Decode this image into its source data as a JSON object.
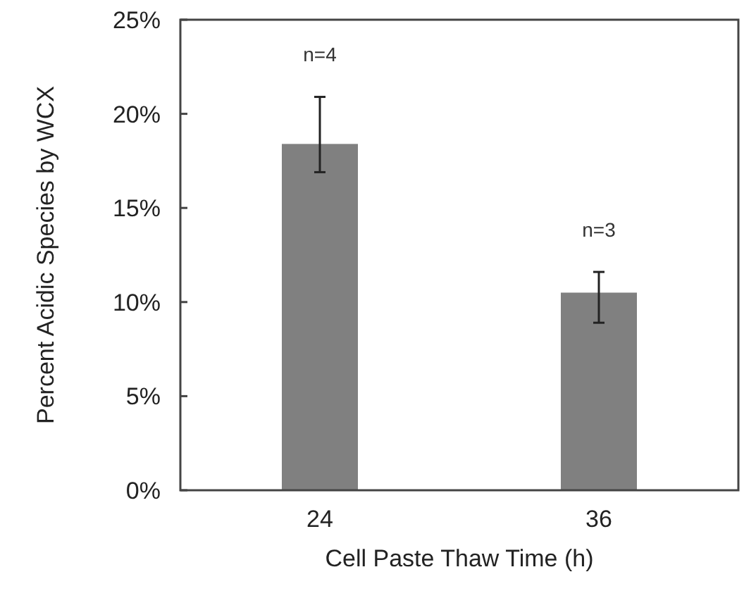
{
  "chart_data": {
    "type": "bar",
    "xlabel": "Cell Paste Thaw Time (h)",
    "ylabel": "Percent Acidic Species by WCX",
    "categories": [
      "24",
      "36"
    ],
    "values": [
      18.4,
      10.5
    ],
    "errors": [
      [
        16.9,
        20.9
      ],
      [
        8.9,
        11.6
      ]
    ],
    "color": "#808080",
    "ylim": [
      0,
      25
    ],
    "yticks": [
      {
        "value": 0,
        "label": "0%"
      },
      {
        "value": 5,
        "label": "5%"
      },
      {
        "value": 10,
        "label": "10%"
      },
      {
        "value": 15,
        "label": "15%"
      },
      {
        "value": 20,
        "label": "20%"
      },
      {
        "value": 25,
        "label": "25%"
      }
    ],
    "annotations": [
      "n=4",
      "n=3"
    ],
    "grid": false
  }
}
